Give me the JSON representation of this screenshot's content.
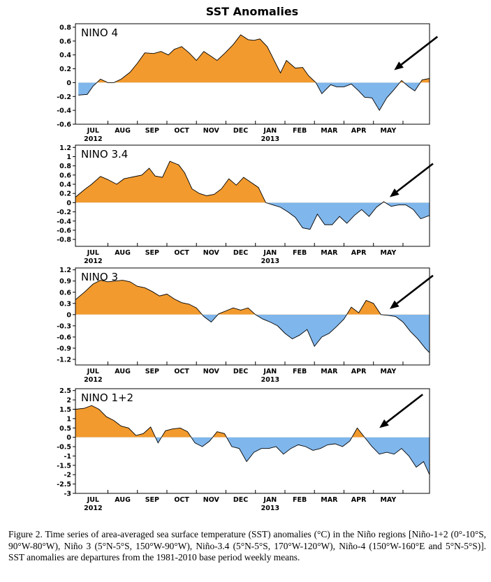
{
  "figure_title": "SST Anomalies",
  "caption": "Figure 2. Time series of area-averaged sea surface temperature (SST) anomalies (°C) in the Niño regions [Niño-1+2 (0°-10°S, 90°W-80°W), Niño 3 (5°N-5°S, 150°W-90°W), Niño-3.4 (5°N-5°S, 170°W-120°W), Niño-4 (150°W-160°E and 5°N-5°S)]. SST anomalies are departures from the 1981-2010 base period weekly means.",
  "colors": {
    "positive": "#f29a2e",
    "negative": "#7fb6ec",
    "line": "#000000",
    "arrow": "#000000"
  },
  "chart_data": [
    {
      "type": "area",
      "title": "NINO 4",
      "x_tick_labels": [
        "JUL",
        "AUG",
        "SEP",
        "OCT",
        "NOV",
        "DEC",
        "JAN",
        "FEB",
        "MAR",
        "APR",
        "MAY"
      ],
      "year_labels": [
        {
          "month": "JUL",
          "label": "2012"
        },
        {
          "month": "JAN",
          "label": "2013"
        }
      ],
      "yticks": [
        "0.8",
        "0.6",
        "0.4",
        "0.2",
        "0",
        "-0.2",
        "-0.4",
        "-0.6"
      ],
      "ylim": [
        -0.6,
        0.85
      ],
      "x": [
        6.0,
        6.3,
        6.5,
        6.75,
        7.0,
        7.2,
        7.45,
        7.75,
        8.0,
        8.25,
        8.55,
        8.8,
        9.05,
        9.25,
        9.5,
        9.75,
        10.0,
        10.25,
        10.5,
        10.7,
        10.95,
        11.25,
        11.5,
        11.75,
        11.95,
        12.15,
        12.4,
        12.6,
        12.85,
        13.05,
        13.35,
        13.6,
        13.8,
        14.05,
        14.25,
        14.55,
        14.75,
        15.0,
        15.25,
        15.5,
        15.7,
        15.95,
        16.2,
        16.45,
        16.7,
        16.95,
        17.2,
        17.4,
        17.65,
        17.9
      ],
      "y": [
        -0.18,
        -0.17,
        -0.05,
        0.05,
        0.0,
        0.0,
        0.05,
        0.15,
        0.28,
        0.43,
        0.42,
        0.45,
        0.4,
        0.48,
        0.52,
        0.43,
        0.32,
        0.45,
        0.38,
        0.32,
        0.42,
        0.55,
        0.69,
        0.62,
        0.61,
        0.63,
        0.52,
        0.35,
        0.14,
        0.32,
        0.21,
        0.22,
        0.1,
        0.0,
        -0.16,
        -0.03,
        -0.06,
        -0.06,
        -0.02,
        -0.12,
        -0.21,
        -0.22,
        -0.4,
        -0.22,
        -0.1,
        0.03,
        -0.06,
        -0.12,
        0.04,
        0.06
      ],
      "arrow": {
        "month": 16.7,
        "value": 0.18
      }
    },
    {
      "type": "area",
      "title": "NINO 3.4",
      "x_tick_labels": [
        "JUL",
        "AUG",
        "SEP",
        "OCT",
        "NOV",
        "DEC",
        "JAN",
        "FEB",
        "MAR",
        "APR",
        "MAY"
      ],
      "year_labels": [
        {
          "month": "JUL",
          "label": "2012"
        },
        {
          "month": "JAN",
          "label": "2013"
        }
      ],
      "yticks": [
        "1.2",
        "1",
        "0.8",
        "0.6",
        "0.4",
        "0.2",
        "0",
        "-0.2",
        "-0.4",
        "-0.6",
        "-0.8"
      ],
      "ylim": [
        -0.95,
        1.25
      ],
      "x": [
        5.9,
        6.2,
        6.45,
        6.75,
        7.0,
        7.3,
        7.55,
        7.85,
        8.15,
        8.4,
        8.6,
        8.85,
        9.1,
        9.4,
        9.6,
        9.85,
        10.1,
        10.35,
        10.6,
        10.85,
        11.1,
        11.35,
        11.6,
        11.85,
        12.1,
        12.35,
        12.6,
        12.85,
        13.1,
        13.35,
        13.6,
        13.85,
        14.1,
        14.35,
        14.6,
        14.85,
        15.1,
        15.35,
        15.6,
        15.85,
        16.1,
        16.35,
        16.6,
        16.85,
        17.1,
        17.35,
        17.6,
        17.9
      ],
      "y": [
        0.12,
        0.28,
        0.4,
        0.57,
        0.5,
        0.4,
        0.52,
        0.56,
        0.6,
        0.75,
        0.58,
        0.55,
        0.9,
        0.82,
        0.65,
        0.3,
        0.2,
        0.15,
        0.18,
        0.3,
        0.52,
        0.38,
        0.55,
        0.44,
        0.33,
        0.0,
        -0.05,
        -0.1,
        -0.2,
        -0.32,
        -0.55,
        -0.58,
        -0.25,
        -0.48,
        -0.48,
        -0.3,
        -0.45,
        -0.28,
        -0.15,
        -0.3,
        -0.1,
        0.02,
        -0.08,
        -0.05,
        -0.05,
        -0.15,
        -0.35,
        -0.28
      ],
      "arrow": {
        "month": 16.55,
        "value": 0.12
      }
    },
    {
      "type": "area",
      "title": "NINO 3",
      "x_tick_labels": [
        "JUL",
        "AUG",
        "SEP",
        "OCT",
        "NOV",
        "DEC",
        "JAN",
        "FEB",
        "MAR",
        "APR",
        "MAY"
      ],
      "year_labels": [
        {
          "month": "JUL",
          "label": "2012"
        },
        {
          "month": "JAN",
          "label": "2013"
        }
      ],
      "yticks": [
        "1.2",
        "0.9",
        "0.6",
        "0.3",
        "0",
        "-0.3",
        "-0.6",
        "-0.9",
        "-1.2"
      ],
      "ylim": [
        -1.35,
        1.25
      ],
      "x": [
        5.9,
        6.2,
        6.5,
        6.75,
        7.0,
        7.25,
        7.5,
        7.75,
        8.0,
        8.25,
        8.5,
        8.75,
        9.0,
        9.25,
        9.5,
        9.75,
        10.0,
        10.25,
        10.5,
        10.75,
        11.0,
        11.25,
        11.5,
        11.75,
        12.0,
        12.25,
        12.5,
        12.75,
        13.0,
        13.25,
        13.5,
        13.75,
        14.0,
        14.25,
        14.5,
        14.75,
        15.0,
        15.25,
        15.5,
        15.75,
        16.0,
        16.25,
        16.5,
        16.75,
        17.0,
        17.25,
        17.5,
        17.75,
        17.9
      ],
      "y": [
        0.4,
        0.6,
        0.82,
        0.92,
        0.88,
        0.9,
        0.92,
        0.88,
        0.76,
        0.72,
        0.62,
        0.5,
        0.55,
        0.42,
        0.32,
        0.28,
        0.18,
        -0.05,
        -0.2,
        0.02,
        0.1,
        0.18,
        0.12,
        0.18,
        0.0,
        -0.12,
        -0.2,
        -0.3,
        -0.5,
        -0.65,
        -0.55,
        -0.4,
        -0.85,
        -0.6,
        -0.5,
        -0.32,
        -0.12,
        0.2,
        0.05,
        0.38,
        0.3,
        0.0,
        -0.02,
        -0.05,
        -0.2,
        -0.45,
        -0.65,
        -0.9,
        -1.02
      ],
      "arrow": {
        "month": 16.55,
        "value": 0.15
      }
    },
    {
      "type": "area",
      "title": "NINO 1+2",
      "x_tick_labels": [
        "JUL",
        "AUG",
        "SEP",
        "OCT",
        "NOV",
        "DEC",
        "JAN",
        "FEB",
        "MAR",
        "APR",
        "MAY"
      ],
      "year_labels": [
        {
          "month": "JUL",
          "label": "2012"
        },
        {
          "month": "JAN",
          "label": "2013"
        }
      ],
      "yticks": [
        "2.5",
        "2",
        "1.5",
        "1",
        "0.5",
        "0",
        "-0.5",
        "-1",
        "-1.5",
        "-2",
        "-2.5",
        "-3"
      ],
      "ylim": [
        -3.0,
        2.6
      ],
      "x": [
        5.9,
        6.2,
        6.45,
        6.7,
        6.95,
        7.2,
        7.45,
        7.7,
        7.95,
        8.2,
        8.45,
        8.7,
        8.95,
        9.2,
        9.45,
        9.7,
        9.95,
        10.2,
        10.45,
        10.7,
        10.95,
        11.2,
        11.45,
        11.7,
        11.95,
        12.2,
        12.45,
        12.7,
        12.95,
        13.2,
        13.45,
        13.7,
        13.95,
        14.2,
        14.45,
        14.7,
        14.95,
        15.2,
        15.45,
        15.7,
        15.95,
        16.2,
        16.45,
        16.7,
        16.95,
        17.2,
        17.45,
        17.7,
        17.9
      ],
      "y": [
        1.5,
        1.55,
        1.7,
        1.5,
        1.1,
        0.9,
        0.6,
        0.5,
        0.1,
        0.2,
        0.55,
        -0.3,
        0.35,
        0.45,
        0.5,
        0.3,
        -0.3,
        -0.5,
        -0.2,
        0.3,
        0.2,
        -0.5,
        -0.6,
        -1.3,
        -0.8,
        -0.6,
        -0.6,
        -0.5,
        -0.9,
        -0.6,
        -0.4,
        -0.5,
        -0.7,
        -0.6,
        -0.4,
        -0.35,
        -0.5,
        -0.2,
        0.5,
        0.0,
        -0.5,
        -0.9,
        -0.8,
        -0.9,
        -0.6,
        -1.0,
        -1.6,
        -1.3,
        -2.0
      ],
      "arrow": {
        "month": 16.2,
        "value": 0.5
      }
    }
  ]
}
